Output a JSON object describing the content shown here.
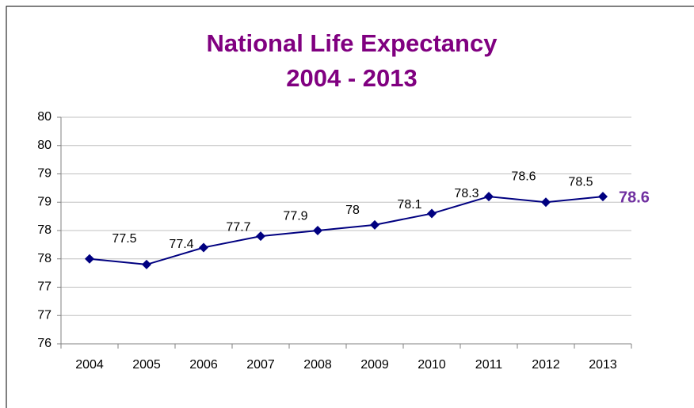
{
  "chart_data": {
    "type": "line",
    "title": "National Life Expectancy",
    "subtitle": "2004 - 2013",
    "categories": [
      "2004",
      "2005",
      "2006",
      "2007",
      "2008",
      "2009",
      "2010",
      "2011",
      "2012",
      "2013"
    ],
    "series": [
      {
        "color": "#000080",
        "values": [
          77.5,
          77.4,
          77.7,
          77.9,
          78,
          78.1,
          78.3,
          78.6,
          78.5,
          78.6
        ]
      }
    ],
    "ylim": [
      76,
      80
    ],
    "yticks": [
      76,
      {
        "value": 76.5,
        "label": "77"
      },
      77,
      {
        "value": 77.5,
        "label": "78"
      },
      78,
      {
        "value": 78.5,
        "label": "79"
      },
      79,
      {
        "value": 79.5,
        "label": "80"
      },
      80
    ],
    "grid": true
  }
}
